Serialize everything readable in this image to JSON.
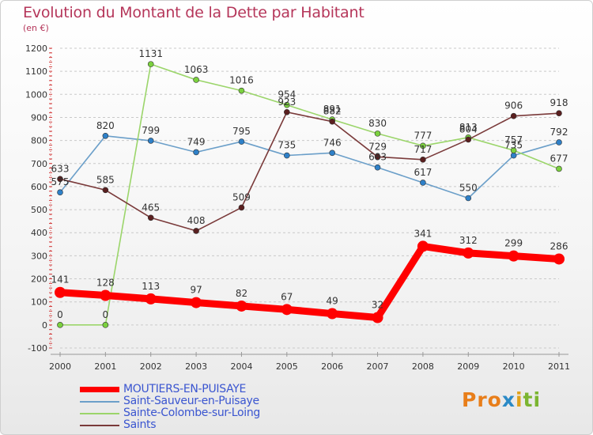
{
  "header": {
    "title": "Evolution du Montant de la Dette par Habitant",
    "subtitle": "(en €)"
  },
  "logo": {
    "text": "Proxiti"
  },
  "chart_data": {
    "type": "line",
    "title": "Evolution du Montant de la Dette par Habitant",
    "subtitle": "(en €)",
    "xlabel": "",
    "ylabel": "",
    "x": [
      "2000",
      "2001",
      "2002",
      "2003",
      "2004",
      "2005",
      "2006",
      "2007",
      "2008",
      "2009",
      "2010",
      "2011"
    ],
    "ylim": [
      -100,
      1200
    ],
    "yticks": [
      -100,
      0,
      100,
      200,
      300,
      400,
      500,
      600,
      700,
      800,
      900,
      1000,
      1100,
      1200
    ],
    "grid": "horizontal dashed",
    "legend_position": "bottom-left",
    "series": [
      {
        "name": "MOUTIERS-EN-PUISAYE",
        "color": "#ff0000",
        "marker": "#ff0000",
        "bold": true,
        "values": [
          141,
          128,
          113,
          97,
          82,
          67,
          49,
          32,
          341,
          312,
          299,
          286
        ]
      },
      {
        "name": "Saint-Sauveur-en-Puisaye",
        "color": "#6b9fc9",
        "marker": "#2e80c8",
        "values": [
          575,
          820,
          799,
          749,
          795,
          735,
          746,
          683,
          617,
          550,
          735,
          792
        ],
        "labels": [
          "575",
          "820",
          "799",
          "749",
          "795",
          "735",
          "746",
          "683",
          "617",
          "550",
          "735",
          "792"
        ]
      },
      {
        "name": "Sainte-Colombe-sur-Loing",
        "color": "#9bd56a",
        "marker": "#7bd13e",
        "values": [
          0,
          0,
          1131,
          1063,
          1016,
          954,
          891,
          830,
          777,
          813,
          757,
          677
        ]
      },
      {
        "name": "Saints",
        "color": "#7a3a3a",
        "marker": "#5a1f1f",
        "values": [
          633,
          585,
          465,
          408,
          509,
          923,
          882,
          729,
          717,
          804,
          906,
          918
        ]
      }
    ]
  }
}
